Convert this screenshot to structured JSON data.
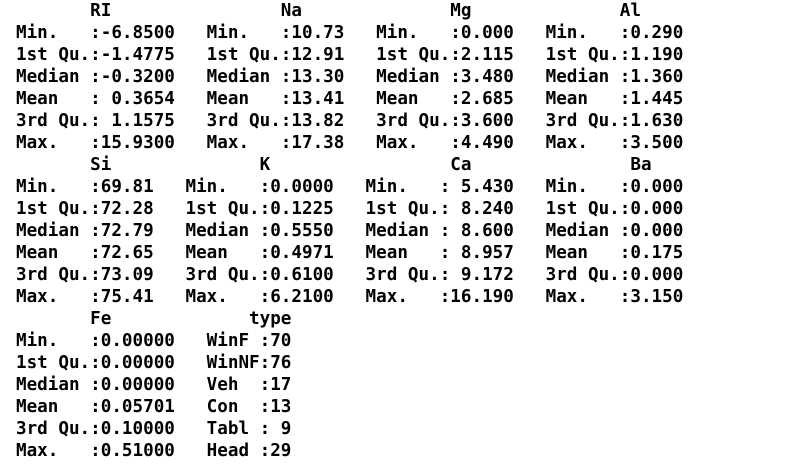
{
  "console_output": {
    "lines": [
      "       RI                Na              Mg              Al",
      "Min.   :-6.8500   Min.   :10.73   Min.   :0.000   Min.   :0.290",
      "1st Qu.:-1.4775   1st Qu.:12.91   1st Qu.:2.115   1st Qu.:1.190",
      "Median :-0.3200   Median :13.30   Median :3.480   Median :1.360",
      "Mean   : 0.3654   Mean   :13.41   Mean   :2.685   Mean   :1.445",
      "3rd Qu.: 1.1575   3rd Qu.:13.82   3rd Qu.:3.600   3rd Qu.:1.630",
      "Max.   :15.9300   Max.   :17.38   Max.   :4.490   Max.   :3.500",
      "       Si              K                 Ca               Ba",
      "Min.   :69.81   Min.   :0.0000   Min.   : 5.430   Min.   :0.000",
      "1st Qu.:72.28   1st Qu.:0.1225   1st Qu.: 8.240   1st Qu.:0.000",
      "Median :72.79   Median :0.5550   Median : 8.600   Median :0.000",
      "Mean   :72.65   Mean   :0.4971   Mean   : 8.957   Mean   :0.175",
      "3rd Qu.:73.09   3rd Qu.:0.6100   3rd Qu.: 9.172   3rd Qu.:0.000",
      "Max.   :75.41   Max.   :6.2100   Max.   :16.190   Max.   :3.150",
      "       Fe             type",
      "Min.   :0.00000   WinF :70",
      "1st Qu.:0.00000   WinNF:76",
      "Median :0.00000   Veh  :17",
      "Mean   :0.05701   Con  :13",
      "3rd Qu.:0.10000   Tabl : 9",
      "Max.   :0.51000   Head :29"
    ]
  }
}
